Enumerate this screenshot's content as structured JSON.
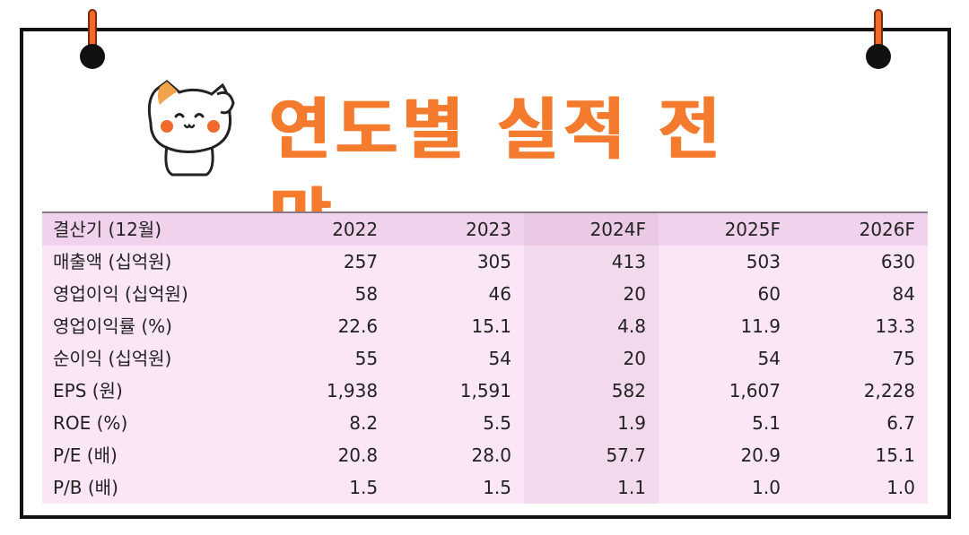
{
  "title": "연도별 실적 전망",
  "colors": {
    "accent": "#f47a2d",
    "table_bg": "#fbe6f8",
    "highlight": "#f3d9ee"
  },
  "table": {
    "header": [
      "결산기 (12월)",
      "2022",
      "2023",
      "2024F",
      "2025F",
      "2026F"
    ],
    "rows": [
      {
        "label": "매출액 (십억원)",
        "values": [
          "257",
          "305",
          "413",
          "503",
          "630"
        ]
      },
      {
        "label": "영업이익 (십억원)",
        "values": [
          "58",
          "46",
          "20",
          "60",
          "84"
        ]
      },
      {
        "label": "영업이익률 (%)",
        "values": [
          "22.6",
          "15.1",
          "4.8",
          "11.9",
          "13.3"
        ]
      },
      {
        "label": "순이익 (십억원)",
        "values": [
          "55",
          "54",
          "20",
          "54",
          "75"
        ]
      },
      {
        "label": "EPS (원)",
        "values": [
          "1,938",
          "1,591",
          "582",
          "1,607",
          "2,228"
        ]
      },
      {
        "label": "ROE (%)",
        "values": [
          "8.2",
          "5.5",
          "1.9",
          "5.1",
          "6.7"
        ]
      },
      {
        "label": "P/E (배)",
        "values": [
          "20.8",
          "28.0",
          "57.7",
          "20.9",
          "15.1"
        ]
      },
      {
        "label": "P/B (배)",
        "values": [
          "1.5",
          "1.5",
          "1.1",
          "1.0",
          "1.0"
        ]
      }
    ]
  },
  "decorations": {
    "mascot": "cat-mascot-icon",
    "pins": "binder-clip-icon"
  }
}
